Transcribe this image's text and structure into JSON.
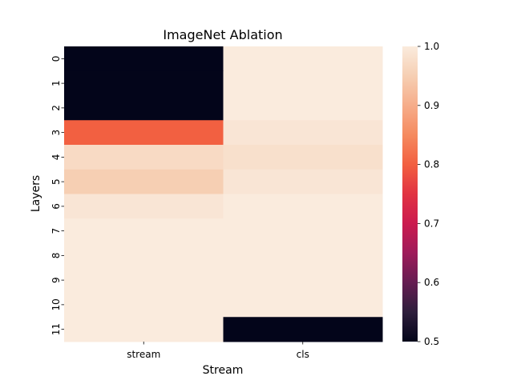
{
  "chart_data": {
    "type": "heatmap",
    "title": "ImageNet Ablation",
    "xlabel": "Stream",
    "ylabel": "Layers",
    "columns": [
      "stream",
      "cls"
    ],
    "rows": [
      "0",
      "1",
      "2",
      "3",
      "4",
      "5",
      "6",
      "7",
      "8",
      "9",
      "10",
      "11"
    ],
    "values": [
      [
        0.5,
        1.0
      ],
      [
        0.5,
        1.0
      ],
      [
        0.5,
        1.0
      ],
      [
        0.8,
        0.99
      ],
      [
        0.97,
        0.98
      ],
      [
        0.95,
        0.99
      ],
      [
        0.99,
        1.0
      ],
      [
        1.0,
        1.0
      ],
      [
        1.0,
        1.0
      ],
      [
        1.0,
        1.0
      ],
      [
        1.0,
        1.0
      ],
      [
        1.0,
        0.5
      ]
    ],
    "colorbar": {
      "min": 0.5,
      "max": 1.0,
      "ticks": [
        "0.5",
        "0.6",
        "0.7",
        "0.8",
        "0.9",
        "1.0"
      ],
      "colormap": "rocket"
    }
  }
}
